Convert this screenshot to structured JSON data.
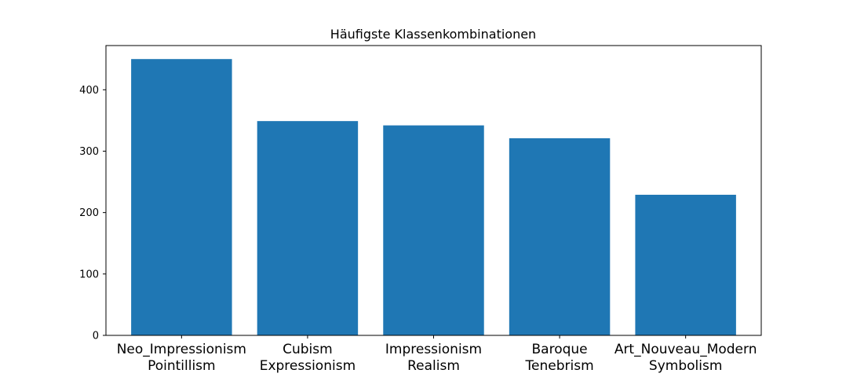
{
  "chart_data": {
    "type": "bar",
    "title": "Häufigste Klassenkombinationen",
    "xlabel": "",
    "ylabel": "",
    "categories": [
      [
        "Neo_Impressionism",
        "Pointillism"
      ],
      [
        "Cubism",
        "Expressionism"
      ],
      [
        "Impressionism",
        "Realism"
      ],
      [
        "Baroque",
        "Tenebrism"
      ],
      [
        "Art_Nouveau_Modern",
        "Symbolism"
      ]
    ],
    "values": [
      450,
      349,
      342,
      321,
      229
    ],
    "ylim": [
      0,
      472
    ],
    "yticks": [
      0,
      100,
      200,
      300,
      400
    ],
    "bar_color": "#1f77b4",
    "grid": false,
    "legend": "none"
  }
}
